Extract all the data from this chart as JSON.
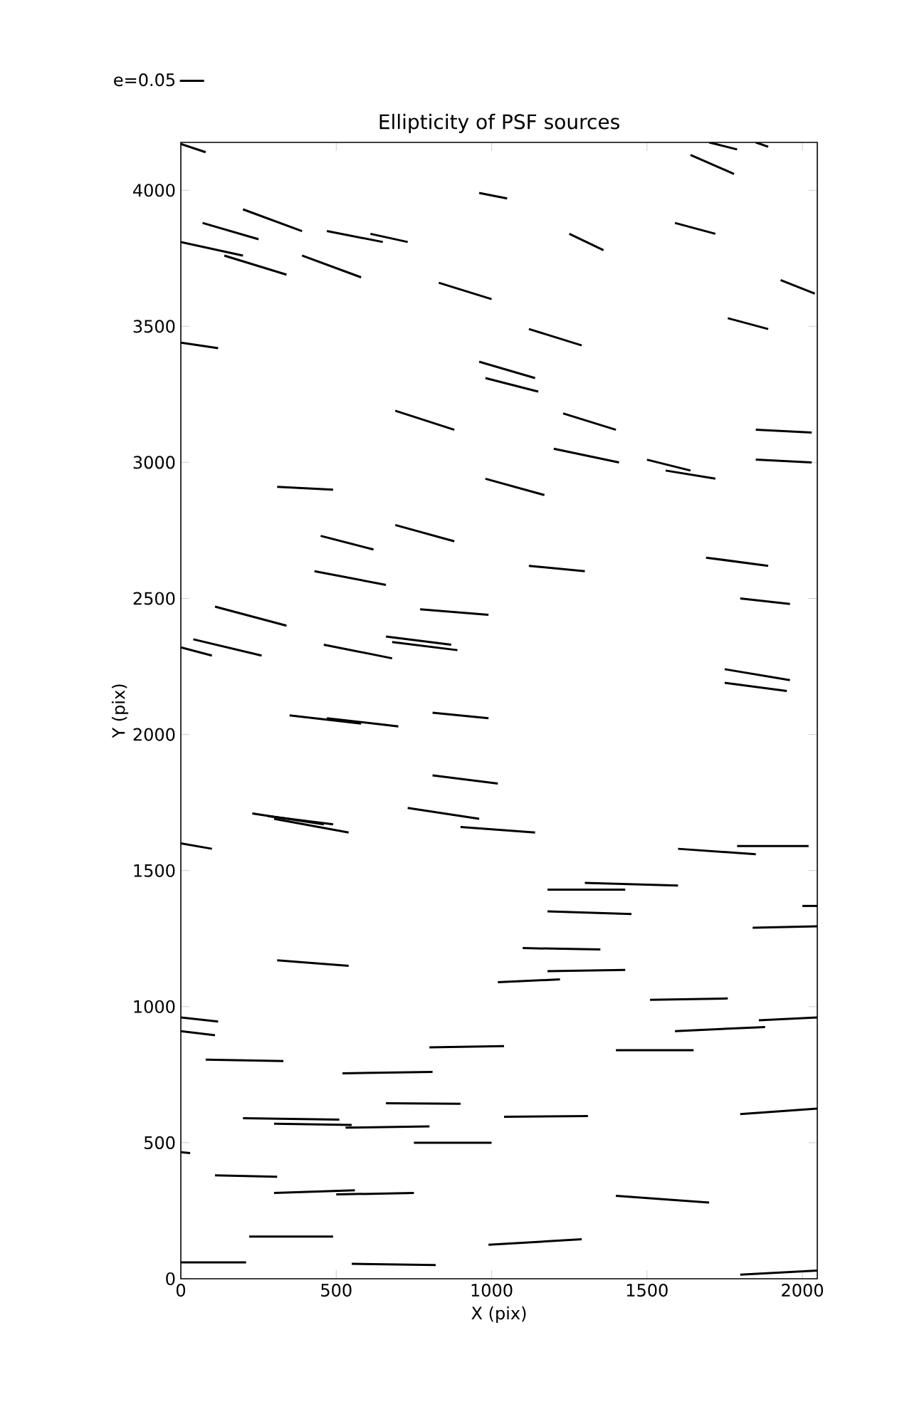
{
  "chart_data": {
    "type": "line",
    "title": "Ellipticity of PSF sources",
    "xlabel": "X (pix)",
    "ylabel": "Y (pix)",
    "xlim": [
      0,
      2048
    ],
    "ylim": [
      0,
      4176
    ],
    "xticks": [
      0,
      500,
      1000,
      1500,
      2000
    ],
    "yticks": [
      0,
      500,
      1000,
      1500,
      2000,
      2500,
      3000,
      3500,
      4000
    ],
    "legend": "top left",
    "color": "#000000",
    "series": [
      {
        "name": "e=0.05",
        "x": [
          0,
          80
        ],
        "values": [
          4170,
          4140
        ]
      },
      {
        "x": [
          1700,
          1790
        ],
        "values": [
          4176,
          4150
        ]
      },
      {
        "x": [
          1850,
          1890
        ],
        "values": [
          4176,
          4160
        ]
      },
      {
        "x": [
          1640,
          1780
        ],
        "values": [
          4130,
          4060
        ]
      },
      {
        "x": [
          960,
          1050
        ],
        "values": [
          3990,
          3970
        ]
      },
      {
        "x": [
          200,
          390
        ],
        "values": [
          3930,
          3850
        ]
      },
      {
        "x": [
          70,
          250
        ],
        "values": [
          3880,
          3820
        ]
      },
      {
        "x": [
          0,
          200
        ],
        "values": [
          3810,
          3760
        ]
      },
      {
        "x": [
          140,
          340
        ],
        "values": [
          3760,
          3690
        ]
      },
      {
        "x": [
          470,
          650
        ],
        "values": [
          3850,
          3810
        ]
      },
      {
        "x": [
          610,
          730
        ],
        "values": [
          3840,
          3810
        ]
      },
      {
        "x": [
          390,
          580
        ],
        "values": [
          3760,
          3680
        ]
      },
      {
        "x": [
          1250,
          1360
        ],
        "values": [
          3840,
          3780
        ]
      },
      {
        "x": [
          1590,
          1720
        ],
        "values": [
          3880,
          3840
        ]
      },
      {
        "x": [
          830,
          1000
        ],
        "values": [
          3660,
          3600
        ]
      },
      {
        "x": [
          1930,
          2040
        ],
        "values": [
          3670,
          3620
        ]
      },
      {
        "x": [
          0,
          120
        ],
        "values": [
          3440,
          3420
        ]
      },
      {
        "x": [
          1760,
          1890
        ],
        "values": [
          3530,
          3490
        ]
      },
      {
        "x": [
          1120,
          1290
        ],
        "values": [
          3490,
          3430
        ]
      },
      {
        "x": [
          960,
          1140
        ],
        "values": [
          3370,
          3310
        ]
      },
      {
        "x": [
          980,
          1150
        ],
        "values": [
          3310,
          3260
        ]
      },
      {
        "x": [
          690,
          880
        ],
        "values": [
          3190,
          3120
        ]
      },
      {
        "x": [
          1230,
          1400
        ],
        "values": [
          3180,
          3120
        ]
      },
      {
        "x": [
          1850,
          2030
        ],
        "values": [
          3120,
          3110
        ]
      },
      {
        "x": [
          1200,
          1410
        ],
        "values": [
          3050,
          3000
        ]
      },
      {
        "x": [
          1500,
          1640
        ],
        "values": [
          3010,
          2970
        ]
      },
      {
        "x": [
          1560,
          1720
        ],
        "values": [
          2970,
          2940
        ]
      },
      {
        "x": [
          1850,
          2030
        ],
        "values": [
          3010,
          3000
        ]
      },
      {
        "x": [
          310,
          490
        ],
        "values": [
          2910,
          2900
        ]
      },
      {
        "x": [
          980,
          1170
        ],
        "values": [
          2940,
          2880
        ]
      },
      {
        "x": [
          690,
          880
        ],
        "values": [
          2770,
          2710
        ]
      },
      {
        "x": [
          450,
          620
        ],
        "values": [
          2730,
          2680
        ]
      },
      {
        "x": [
          1690,
          1890
        ],
        "values": [
          2650,
          2620
        ]
      },
      {
        "x": [
          1120,
          1300
        ],
        "values": [
          2620,
          2600
        ]
      },
      {
        "x": [
          430,
          660
        ],
        "values": [
          2600,
          2550
        ]
      },
      {
        "x": [
          770,
          990
        ],
        "values": [
          2460,
          2440
        ]
      },
      {
        "x": [
          110,
          340
        ],
        "values": [
          2470,
          2400
        ]
      },
      {
        "x": [
          1800,
          1960
        ],
        "values": [
          2500,
          2480
        ]
      },
      {
        "x": [
          40,
          260
        ],
        "values": [
          2350,
          2290
        ]
      },
      {
        "x": [
          0,
          100
        ],
        "values": [
          2320,
          2290
        ]
      },
      {
        "x": [
          460,
          680
        ],
        "values": [
          2330,
          2280
        ]
      },
      {
        "x": [
          660,
          870
        ],
        "values": [
          2360,
          2330
        ]
      },
      {
        "x": [
          680,
          890
        ],
        "values": [
          2340,
          2310
        ]
      },
      {
        "x": [
          1750,
          1960
        ],
        "values": [
          2240,
          2200
        ]
      },
      {
        "x": [
          1750,
          1950
        ],
        "values": [
          2190,
          2160
        ]
      },
      {
        "x": [
          350,
          580
        ],
        "values": [
          2070,
          2040
        ]
      },
      {
        "x": [
          470,
          700
        ],
        "values": [
          2060,
          2030
        ]
      },
      {
        "x": [
          810,
          990
        ],
        "values": [
          2080,
          2060
        ]
      },
      {
        "x": [
          810,
          1020
        ],
        "values": [
          1850,
          1820
        ]
      },
      {
        "x": [
          230,
          460
        ],
        "values": [
          1710,
          1670
        ]
      },
      {
        "x": [
          300,
          540
        ],
        "values": [
          1690,
          1640
        ]
      },
      {
        "x": [
          280,
          490
        ],
        "values": [
          1700,
          1670
        ]
      },
      {
        "x": [
          730,
          960
        ],
        "values": [
          1730,
          1690
        ]
      },
      {
        "x": [
          900,
          1140
        ],
        "values": [
          1660,
          1640
        ]
      },
      {
        "x": [
          0,
          100
        ],
        "values": [
          1600,
          1580
        ]
      },
      {
        "x": [
          1600,
          1850
        ],
        "values": [
          1580,
          1560
        ]
      },
      {
        "x": [
          1790,
          2020
        ],
        "values": [
          1590,
          1590
        ]
      },
      {
        "x": [
          1180,
          1430
        ],
        "values": [
          1430,
          1430
        ]
      },
      {
        "x": [
          1300,
          1600
        ],
        "values": [
          1455,
          1445
        ]
      },
      {
        "x": [
          2000,
          2048
        ],
        "values": [
          1370,
          1370
        ]
      },
      {
        "x": [
          1180,
          1450
        ],
        "values": [
          1350,
          1340
        ]
      },
      {
        "x": [
          1840,
          2048
        ],
        "values": [
          1290,
          1295
        ]
      },
      {
        "x": [
          1100,
          1350
        ],
        "values": [
          1215,
          1210
        ]
      },
      {
        "x": [
          1180,
          1430
        ],
        "values": [
          1130,
          1135
        ]
      },
      {
        "x": [
          310,
          540
        ],
        "values": [
          1170,
          1150
        ]
      },
      {
        "x": [
          1020,
          1220
        ],
        "values": [
          1090,
          1100
        ]
      },
      {
        "x": [
          1510,
          1760
        ],
        "values": [
          1025,
          1030
        ]
      },
      {
        "x": [
          0,
          120
        ],
        "values": [
          960,
          945
        ]
      },
      {
        "x": [
          0,
          110
        ],
        "values": [
          910,
          895
        ]
      },
      {
        "x": [
          1590,
          1880
        ],
        "values": [
          910,
          925
        ]
      },
      {
        "x": [
          1860,
          2048
        ],
        "values": [
          950,
          960
        ]
      },
      {
        "x": [
          80,
          330
        ],
        "values": [
          805,
          800
        ]
      },
      {
        "x": [
          800,
          1040
        ],
        "values": [
          850,
          855
        ]
      },
      {
        "x": [
          1400,
          1650
        ],
        "values": [
          840,
          840
        ]
      },
      {
        "x": [
          520,
          810
        ],
        "values": [
          755,
          760
        ]
      },
      {
        "x": [
          660,
          900
        ],
        "values": [
          645,
          643
        ]
      },
      {
        "x": [
          200,
          510
        ],
        "values": [
          590,
          585
        ]
      },
      {
        "x": [
          300,
          550
        ],
        "values": [
          570,
          565
        ]
      },
      {
        "x": [
          530,
          800
        ],
        "values": [
          555,
          560
        ]
      },
      {
        "x": [
          750,
          1000
        ],
        "values": [
          500,
          500
        ]
      },
      {
        "x": [
          1040,
          1310
        ],
        "values": [
          595,
          598
        ]
      },
      {
        "x": [
          1800,
          2048
        ],
        "values": [
          605,
          625
        ]
      },
      {
        "x": [
          0,
          30
        ],
        "values": [
          465,
          462
        ]
      },
      {
        "x": [
          110,
          310
        ],
        "values": [
          380,
          375
        ]
      },
      {
        "x": [
          300,
          560
        ],
        "values": [
          315,
          325
        ]
      },
      {
        "x": [
          500,
          750
        ],
        "values": [
          310,
          315
        ]
      },
      {
        "x": [
          1400,
          1700
        ],
        "values": [
          305,
          280
        ]
      },
      {
        "x": [
          220,
          490
        ],
        "values": [
          155,
          155
        ]
      },
      {
        "x": [
          0,
          210
        ],
        "values": [
          60,
          60
        ]
      },
      {
        "x": [
          550,
          820
        ],
        "values": [
          55,
          50
        ]
      },
      {
        "x": [
          990,
          1290
        ],
        "values": [
          125,
          145
        ]
      },
      {
        "x": [
          1800,
          2048
        ],
        "values": [
          15,
          30
        ]
      }
    ]
  }
}
